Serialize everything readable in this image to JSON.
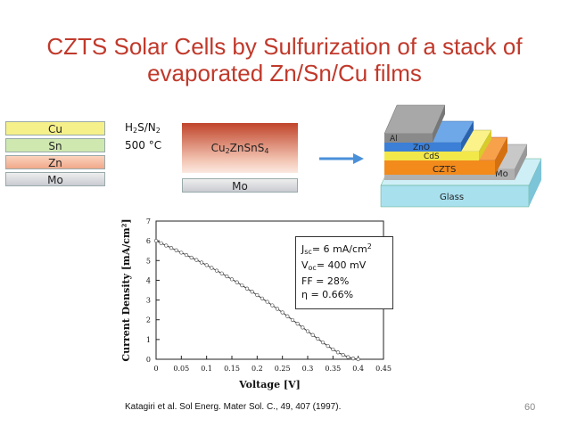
{
  "slide": {
    "title_line1": "CZTS Solar Cells by Sulfurization of a stack of",
    "title_line2": "evaporated Zn/Sn/Cu films",
    "page_number": "60",
    "citation": "Katagiri et al. Sol Energ. Mater Sol. C., 49, 407 (1997)."
  },
  "stack_before": [
    "Cu",
    "Sn",
    "Zn",
    "Mo"
  ],
  "process": {
    "gas": "H2/S/N2",
    "gas_parts": [
      "H",
      "2",
      "S/N",
      "2"
    ],
    "temp": "500 °C"
  },
  "stack_after": {
    "top": "Cu2ZnSnS4",
    "top_parts": [
      "Cu",
      "2",
      "ZnSnS",
      "4"
    ],
    "bottom": "Mo"
  },
  "device_layers": [
    "Al",
    "ZnO",
    "CdS",
    "CZTS",
    "Mo",
    "Glass"
  ],
  "legend": {
    "jsc": {
      "sym": "J",
      "sub": "sc",
      "value": "= 6 mA/cm",
      "sup": "2"
    },
    "voc": {
      "sym": "V",
      "sub": "oc",
      "value": "= 400 mV"
    },
    "ff": "FF = 28%",
    "eta": "η = 0.66%"
  },
  "colors": {
    "title": "#c0392b",
    "cu": "#f5f08a",
    "sn": "#cfe8b0",
    "zn": "#f4b89a",
    "mo": "#d9d9d9",
    "czts_layer": "#c9472a",
    "arrow": "#4a90d9"
  },
  "chart_data": {
    "type": "scatter",
    "xlabel": "Voltage [V]",
    "ylabel": "Current Density [mA/cm²]",
    "xlim": [
      0,
      0.45
    ],
    "ylim": [
      0,
      7
    ],
    "xticks": [
      "0",
      "0.05",
      "0.1",
      "0.15",
      "0.2",
      "0.25",
      "0.3",
      "0.35",
      "0.4",
      "0.45"
    ],
    "yticks": [
      "0",
      "1",
      "2",
      "3",
      "4",
      "5",
      "6",
      "7"
    ],
    "x": [
      0,
      0.01,
      0.02,
      0.03,
      0.04,
      0.05,
      0.06,
      0.07,
      0.08,
      0.09,
      0.1,
      0.11,
      0.12,
      0.13,
      0.14,
      0.15,
      0.16,
      0.17,
      0.18,
      0.19,
      0.2,
      0.21,
      0.22,
      0.23,
      0.24,
      0.25,
      0.26,
      0.27,
      0.28,
      0.29,
      0.3,
      0.31,
      0.32,
      0.33,
      0.34,
      0.35,
      0.36,
      0.37,
      0.38,
      0.39,
      0.4
    ],
    "y": [
      6.0,
      5.88,
      5.76,
      5.64,
      5.52,
      5.4,
      5.28,
      5.15,
      5.03,
      4.9,
      4.77,
      4.63,
      4.49,
      4.35,
      4.2,
      4.05,
      3.9,
      3.74,
      3.58,
      3.42,
      3.25,
      3.08,
      2.91,
      2.73,
      2.55,
      2.37,
      2.18,
      1.99,
      1.8,
      1.61,
      1.42,
      1.23,
      1.04,
      0.85,
      0.67,
      0.5,
      0.35,
      0.22,
      0.11,
      0.04,
      0.0
    ]
  }
}
